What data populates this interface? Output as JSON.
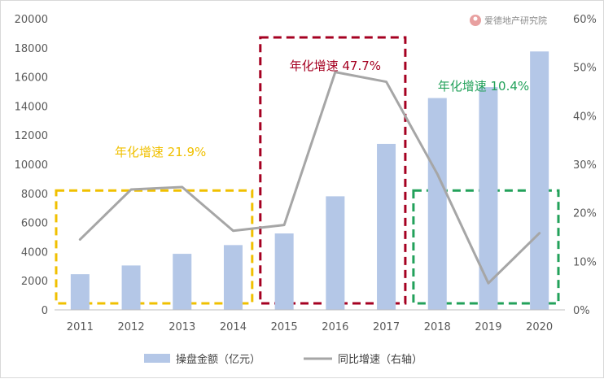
{
  "watermark": "爱德地产研究院",
  "chart_data": {
    "type": "bar",
    "categories": [
      "2011",
      "2012",
      "2013",
      "2014",
      "2015",
      "2016",
      "2017",
      "2018",
      "2019",
      "2020"
    ],
    "series": [
      {
        "name": "操盘金额（亿元）",
        "type": "bar",
        "axis": "left",
        "color": "#b4c7e7",
        "values": [
          2450,
          3050,
          3850,
          4450,
          5250,
          7800,
          11400,
          14550,
          15300,
          17750
        ]
      },
      {
        "name": "同比增速（右轴）",
        "type": "line",
        "axis": "right",
        "color": "#a6a6a6",
        "values": [
          0.145,
          0.248,
          0.253,
          0.163,
          0.175,
          0.49,
          0.47,
          0.28,
          0.055,
          0.158
        ]
      }
    ],
    "y_left": {
      "min": 0,
      "max": 20000,
      "ticks": [
        "0",
        "2000",
        "4000",
        "6000",
        "8000",
        "10000",
        "12000",
        "14000",
        "16000",
        "18000",
        "20000"
      ]
    },
    "y_right": {
      "min": 0,
      "max": 0.6,
      "ticks": [
        "0%",
        "10%",
        "20%",
        "30%",
        "40%",
        "50%",
        "60%"
      ]
    },
    "legend_position": "bottom",
    "grid": false,
    "annotations": [
      {
        "text": "年化增速 21.9%",
        "color": "#f0c000",
        "box_from": "2011",
        "box_to": "2014"
      },
      {
        "text": "年化增速 47.7%",
        "color": "#a50021",
        "box_from": "2015",
        "box_to": "2017"
      },
      {
        "text": "年化增速 10.4%",
        "color": "#22a15a",
        "box_from": "2018",
        "box_to": "2020"
      }
    ]
  }
}
